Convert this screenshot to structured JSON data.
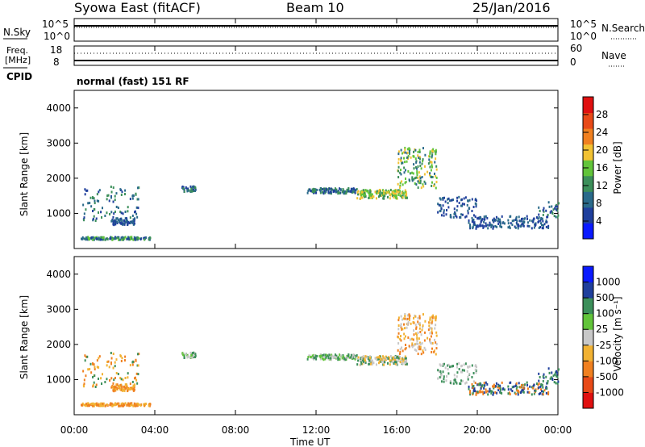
{
  "header": {
    "left_title": "Syowa East (fitACF)",
    "center_title": "Beam 10",
    "date": "25/Jan/2016"
  },
  "top_panels": {
    "nsky_label": "N.Sky",
    "nsky_ticks": [
      "10^5",
      "10^0"
    ],
    "nsearch_label": "N.Search",
    "nsearch_ticks": [
      "10^5",
      "10^0"
    ],
    "freq_label_line1": "Freq.",
    "freq_label_line2": "[MHz]",
    "freq_ticks": [
      "18",
      "8"
    ],
    "nave_label": "Nave",
    "nave_ticks": [
      "60",
      "0"
    ],
    "cpid_label": "CPID",
    "cpid_value": "normal (fast) 151 RF"
  },
  "colors": {
    "power_scale": [
      "#0a1aff",
      "#1f3f9c",
      "#2a6a8a",
      "#3c8f5a",
      "#62c43a",
      "#f2c233",
      "#f08020",
      "#e84a18",
      "#e01010"
    ],
    "velocity_scale": [
      "#e01010",
      "#e84a18",
      "#f08020",
      "#f2b233",
      "#c8c8c8",
      "#62c43a",
      "#3c8f5a",
      "#1f3f9c",
      "#0a1aff"
    ]
  },
  "chart_data": [
    {
      "type": "heatmap",
      "name": "power",
      "xlabel": "",
      "ylabel": "Slant Range [km]",
      "x_ticks": [
        "00:00",
        "04:00",
        "08:00",
        "12:00",
        "16:00",
        "20:00",
        "00:00"
      ],
      "xlim_hours": [
        0,
        24
      ],
      "ylim": [
        0,
        4500
      ],
      "y_ticks": [
        1000,
        2000,
        3000,
        4000
      ],
      "colorbar_label": "Power [dB]",
      "colorbar_ticks": [
        "4",
        "8",
        "12",
        "16",
        "20",
        "24",
        "28"
      ],
      "colorbar_range": [
        0,
        30
      ]
    },
    {
      "type": "heatmap",
      "name": "velocity",
      "xlabel": "Time UT",
      "ylabel": "Slant Range [km]",
      "x_ticks": [
        "00:00",
        "04:00",
        "08:00",
        "12:00",
        "16:00",
        "20:00",
        "00:00"
      ],
      "xlim_hours": [
        0,
        24
      ],
      "ylim": [
        0,
        4500
      ],
      "y_ticks": [
        1000,
        2000,
        3000,
        4000
      ],
      "colorbar_label": "Velocity [m s⁻¹]",
      "colorbar_ticks": [
        "1000",
        "500",
        "100",
        "25",
        "-25",
        "-100",
        "-500",
        "-1000"
      ]
    }
  ]
}
